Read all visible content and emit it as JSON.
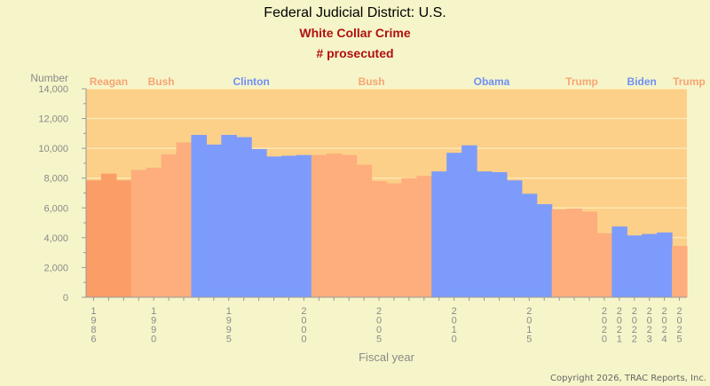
{
  "titles": {
    "title": "Federal Judicial District: U.S.",
    "subtitle": "White Collar Crime",
    "subtitle2": "# prosecuted"
  },
  "copyright": "Copyright 2026, TRAC Reports, Inc.",
  "colors": {
    "background": "#f6f5c9",
    "plot_background": "#fcd088",
    "republican": "#fdae7c",
    "republican_dark": "#fb9d66",
    "democrat": "#7d9bfb",
    "republican_label": "#f7a472",
    "democrat_label": "#6f8ef5",
    "axis_text": "#8a8a8a"
  },
  "chart_data": {
    "type": "bar",
    "xlabel": "Fiscal year",
    "ylabel": "Number",
    "ylim": [
      0,
      14000
    ],
    "yticks": [
      0,
      2000,
      4000,
      6000,
      8000,
      10000,
      12000,
      14000
    ],
    "ytick_labels": [
      "0",
      "2,000",
      "4,000",
      "6,000",
      "8,000",
      "10,000",
      "12,000",
      "14,000"
    ],
    "grid": true,
    "x": [
      1986,
      1987,
      1988,
      1989,
      1990,
      1991,
      1992,
      1993,
      1994,
      1995,
      1996,
      1997,
      1998,
      1999,
      2000,
      2001,
      2002,
      2003,
      2004,
      2005,
      2006,
      2007,
      2008,
      2009,
      2010,
      2011,
      2012,
      2013,
      2014,
      2015,
      2016,
      2017,
      2018,
      2019,
      2020,
      2021,
      2022,
      2023,
      2024,
      2025
    ],
    "values": [
      7850,
      8300,
      7850,
      8550,
      8700,
      9600,
      10400,
      10900,
      10250,
      10900,
      10750,
      9950,
      9450,
      9500,
      9550,
      9550,
      9650,
      9550,
      8900,
      7800,
      7650,
      8000,
      8150,
      8450,
      9700,
      10200,
      8450,
      8400,
      7850,
      6950,
      6250,
      5900,
      5950,
      5750,
      4300,
      4750,
      4150,
      4250,
      4350,
      3450
    ],
    "xtick_years": [
      1986,
      1990,
      1995,
      2000,
      2005,
      2010,
      2015,
      2020,
      2021,
      2022,
      2023,
      2024,
      2025
    ],
    "presidents": [
      {
        "name": "Reagan",
        "party": "R",
        "start": 1986,
        "end": 1988
      },
      {
        "name": "Bush",
        "party": "R",
        "start": 1989,
        "end": 1992
      },
      {
        "name": "Clinton",
        "party": "D",
        "start": 1993,
        "end": 2000
      },
      {
        "name": "Bush",
        "party": "R",
        "start": 2001,
        "end": 2008
      },
      {
        "name": "Obama",
        "party": "D",
        "start": 2009,
        "end": 2016
      },
      {
        "name": "Trump",
        "party": "R",
        "start": 2017,
        "end": 2020
      },
      {
        "name": "Biden",
        "party": "D",
        "start": 2021,
        "end": 2024
      },
      {
        "name": "Trump",
        "party": "R",
        "start": 2025,
        "end": 2025
      }
    ]
  }
}
